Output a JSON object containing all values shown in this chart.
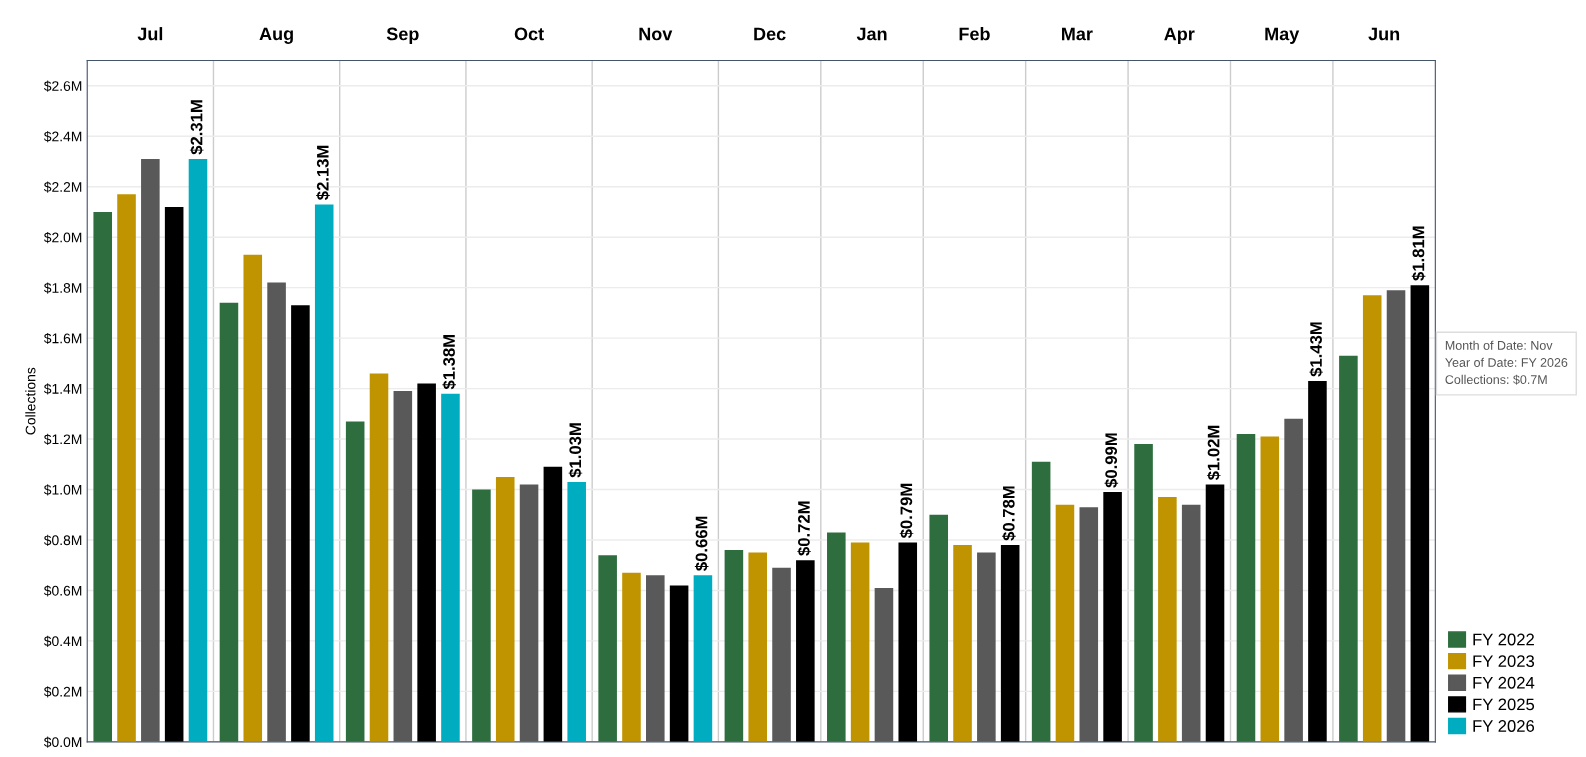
{
  "chart_data": {
    "type": "bar",
    "ylabel": "Collections",
    "categories": [
      "Jul",
      "Aug",
      "Sep",
      "Oct",
      "Nov",
      "Dec",
      "Jan",
      "Feb",
      "Mar",
      "Apr",
      "May",
      "Jun"
    ],
    "series": [
      {
        "name": "FY 2022",
        "color": "#2e6e3e",
        "values": [
          2.1,
          1.74,
          1.27,
          1.0,
          0.74,
          0.76,
          0.83,
          0.9,
          1.11,
          1.18,
          1.22,
          1.53
        ]
      },
      {
        "name": "FY 2023",
        "color": "#c09400",
        "values": [
          2.17,
          1.93,
          1.46,
          1.05,
          0.67,
          0.75,
          0.79,
          0.78,
          0.94,
          0.97,
          1.21,
          1.77
        ]
      },
      {
        "name": "FY 2024",
        "color": "#595959",
        "values": [
          2.31,
          1.82,
          1.39,
          1.02,
          0.66,
          0.69,
          0.61,
          0.75,
          0.93,
          0.94,
          1.28,
          1.79
        ]
      },
      {
        "name": "FY 2025",
        "color": "#000000",
        "values": [
          2.12,
          1.73,
          1.42,
          1.09,
          0.62,
          0.72,
          0.79,
          0.78,
          0.99,
          1.02,
          1.43,
          1.81
        ],
        "value_labels": [
          null,
          null,
          null,
          null,
          null,
          "$0.72M",
          "$0.79M",
          "$0.78M",
          "$0.99M",
          "$1.02M",
          "$1.43M",
          "$1.81M"
        ]
      },
      {
        "name": "FY 2026",
        "color": "#00adc0",
        "values": [
          2.31,
          2.13,
          1.38,
          1.03,
          0.66,
          null,
          null,
          null,
          null,
          null,
          null,
          null
        ],
        "value_labels": [
          "$2.31M",
          "$2.13M",
          "$1.38M",
          "$1.03M",
          "$0.66M",
          null,
          null,
          null,
          null,
          null,
          null,
          null
        ]
      }
    ],
    "ylim": [
      0,
      2.7
    ],
    "yticks": [
      {
        "value": 0,
        "label": "$0.0M"
      },
      {
        "value": 0.2,
        "label": "$0.2M"
      },
      {
        "value": 0.4,
        "label": "$0.4M"
      },
      {
        "value": 0.6,
        "label": "$0.6M"
      },
      {
        "value": 0.8,
        "label": "$0.8M"
      },
      {
        "value": 1.0,
        "label": "$1.0M"
      },
      {
        "value": 1.2,
        "label": "$1.2M"
      },
      {
        "value": 1.4,
        "label": "$1.4M"
      },
      {
        "value": 1.6,
        "label": "$1.6M"
      },
      {
        "value": 1.8,
        "label": "$1.8M"
      },
      {
        "value": 2.0,
        "label": "$2.0M"
      },
      {
        "value": 2.2,
        "label": "$2.2M"
      },
      {
        "value": 2.4,
        "label": "$2.4M"
      },
      {
        "value": 2.6,
        "label": "$2.6M"
      }
    ],
    "grid": "y",
    "legend": "bottom right",
    "annotations": [
      "Month of Date: Nov\nYear of Date: FY 2026\nCollections: $0.7M"
    ]
  }
}
